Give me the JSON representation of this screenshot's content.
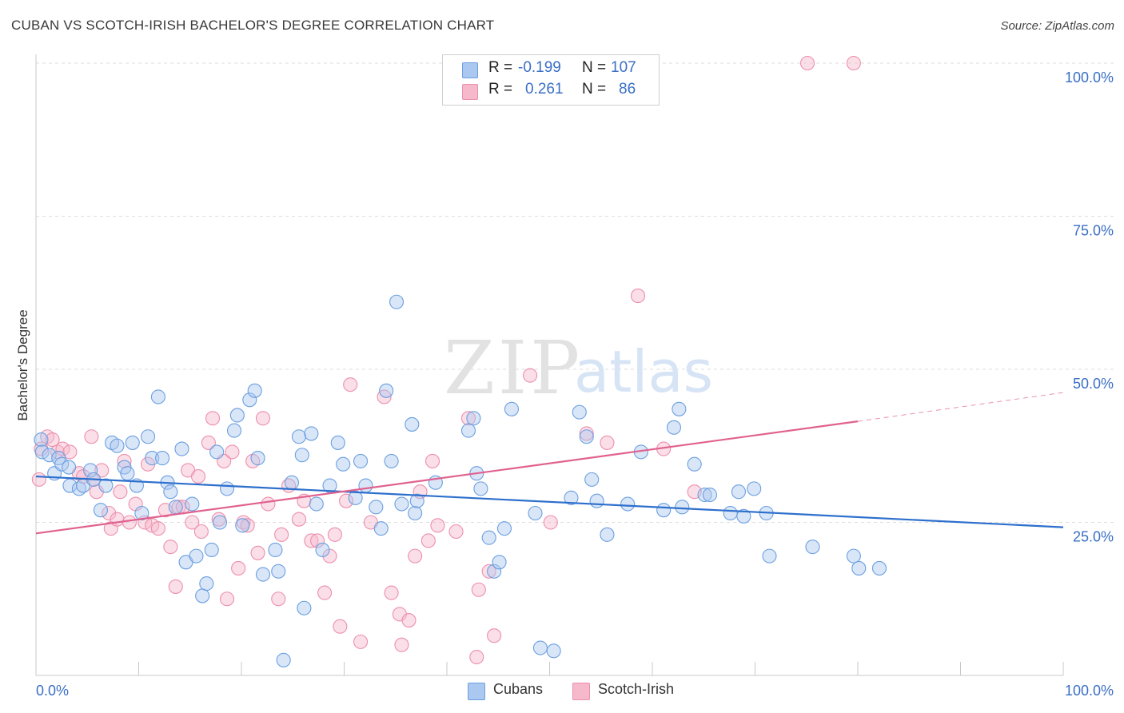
{
  "header": {
    "title": "CUBAN VS SCOTCH-IRISH BACHELOR'S DEGREE CORRELATION CHART",
    "source": "Source: ZipAtlas.com"
  },
  "watermark": {
    "zip": "ZIP",
    "atlas": "atlas"
  },
  "legend": {
    "rows": [
      {
        "r_label": "R =",
        "r_value": "-0.199",
        "n_label": "N =",
        "n_value": "107"
      },
      {
        "r_label": "R =",
        "r_value": "0.261",
        "n_label": "N =",
        "n_value": "86"
      }
    ]
  },
  "bottom_legend": {
    "cubans": "Cubans",
    "scotch_irish": "Scotch-Irish"
  },
  "colors": {
    "cubans_fill": "#aac8f0",
    "cubans_stroke": "#6b9fe0",
    "cubans_line": "#2d6fcc",
    "scotch_fill": "#f6b8cb",
    "scotch_stroke": "#ec8fac",
    "scotch_line": "#e0628f",
    "tick_label": "#3a6fc4",
    "grid": "#dddddd"
  },
  "chart_data": {
    "type": "scatter",
    "title": "CUBAN VS SCOTCH-IRISH BACHELOR'S DEGREE CORRELATION CHART",
    "xlabel": "",
    "ylabel": "Bachelor's Degree",
    "xlim": [
      0,
      100
    ],
    "ylim": [
      0,
      100
    ],
    "x_tick_labels": [
      "0.0%",
      "100.0%"
    ],
    "y_ticks": [
      25,
      50,
      75,
      100
    ],
    "y_tick_labels": [
      "25.0%",
      "50.0%",
      "75.0%",
      "100.0%"
    ],
    "grid": "horizontal dashed",
    "legend_position": "top-center",
    "series": [
      {
        "name": "Cubans",
        "r": -0.199,
        "n": 107,
        "trend": {
          "x": [
            0,
            100
          ],
          "y": [
            32.5,
            24.2
          ]
        },
        "points": [
          [
            0.5,
            38.5
          ],
          [
            0.6,
            36.5
          ],
          [
            1.3,
            36
          ],
          [
            1.8,
            33
          ],
          [
            2.2,
            35.5
          ],
          [
            2.5,
            34.5
          ],
          [
            3.2,
            34
          ],
          [
            3.3,
            31
          ],
          [
            4.2,
            30.5
          ],
          [
            4.6,
            31
          ],
          [
            5.3,
            33.5
          ],
          [
            5.6,
            32
          ],
          [
            6.3,
            27
          ],
          [
            6.8,
            31
          ],
          [
            7.4,
            38
          ],
          [
            7.9,
            37.5
          ],
          [
            8.6,
            34
          ],
          [
            8.9,
            33
          ],
          [
            9.4,
            38
          ],
          [
            9.8,
            31
          ],
          [
            10.3,
            26.5
          ],
          [
            10.9,
            39
          ],
          [
            11.3,
            35.5
          ],
          [
            11.9,
            45.5
          ],
          [
            12.3,
            35.5
          ],
          [
            12.8,
            31.5
          ],
          [
            13.1,
            30
          ],
          [
            13.6,
            27.5
          ],
          [
            14.2,
            37
          ],
          [
            14.6,
            18.5
          ],
          [
            15.2,
            28
          ],
          [
            15.6,
            19.5
          ],
          [
            16.2,
            13
          ],
          [
            16.6,
            15
          ],
          [
            17.1,
            20.5
          ],
          [
            17.6,
            36.5
          ],
          [
            17.9,
            25
          ],
          [
            18.6,
            30.5
          ],
          [
            19.3,
            40
          ],
          [
            19.6,
            42.5
          ],
          [
            20.1,
            24.5
          ],
          [
            20.8,
            45
          ],
          [
            21.3,
            46.5
          ],
          [
            21.6,
            35.5
          ],
          [
            22.1,
            16.5
          ],
          [
            23.3,
            20.5
          ],
          [
            23.6,
            17
          ],
          [
            24.1,
            2.5
          ],
          [
            24.9,
            31.5
          ],
          [
            25.6,
            39
          ],
          [
            25.9,
            36
          ],
          [
            26.1,
            11
          ],
          [
            26.8,
            39.5
          ],
          [
            27.3,
            28
          ],
          [
            27.9,
            20.5
          ],
          [
            28.6,
            31
          ],
          [
            29.4,
            38
          ],
          [
            29.9,
            34.5
          ],
          [
            31.1,
            29
          ],
          [
            31.6,
            35
          ],
          [
            32.1,
            31
          ],
          [
            33.1,
            27.5
          ],
          [
            33.6,
            24
          ],
          [
            34.1,
            46.5
          ],
          [
            34.6,
            35
          ],
          [
            35.1,
            61
          ],
          [
            35.6,
            28
          ],
          [
            36.6,
            41
          ],
          [
            36.9,
            26.5
          ],
          [
            37.1,
            28.5
          ],
          [
            38.9,
            31.5
          ],
          [
            42.1,
            40
          ],
          [
            42.6,
            42
          ],
          [
            42.9,
            33
          ],
          [
            43.3,
            30.5
          ],
          [
            44.1,
            22.5
          ],
          [
            44.6,
            17
          ],
          [
            45.1,
            18.5
          ],
          [
            45.6,
            24
          ],
          [
            46.3,
            43.5
          ],
          [
            48.6,
            26.5
          ],
          [
            49.1,
            4.5
          ],
          [
            50.4,
            4
          ],
          [
            52.1,
            29
          ],
          [
            52.9,
            43
          ],
          [
            53.6,
            39
          ],
          [
            54.1,
            32
          ],
          [
            54.6,
            28.5
          ],
          [
            55.6,
            23
          ],
          [
            57.6,
            28
          ],
          [
            58.9,
            36.5
          ],
          [
            61.1,
            27
          ],
          [
            62.1,
            40.5
          ],
          [
            62.6,
            43.5
          ],
          [
            62.9,
            27.5
          ],
          [
            64.1,
            34.5
          ],
          [
            65.1,
            29.5
          ],
          [
            65.6,
            29.5
          ],
          [
            67.6,
            26.5
          ],
          [
            68.4,
            30
          ],
          [
            68.9,
            26
          ],
          [
            69.9,
            30.5
          ],
          [
            71.1,
            26.5
          ],
          [
            71.4,
            19.5
          ],
          [
            75.6,
            21
          ],
          [
            79.6,
            19.5
          ],
          [
            80.1,
            17.5
          ],
          [
            82.1,
            17.5
          ]
        ]
      },
      {
        "name": "Scotch-Irish",
        "r": 0.261,
        "n": 86,
        "trend": {
          "x": [
            0,
            80
          ],
          "y": [
            23.2,
            41.5
          ]
        },
        "trend_dashed": {
          "x": [
            80,
            100
          ],
          "y": [
            41.5,
            46.2
          ]
        },
        "points": [
          [
            0.3,
            32
          ],
          [
            0.5,
            37
          ],
          [
            1.1,
            39
          ],
          [
            1.6,
            38.5
          ],
          [
            2.1,
            36.5
          ],
          [
            2.6,
            37
          ],
          [
            3.3,
            36.5
          ],
          [
            4.2,
            33
          ],
          [
            4.6,
            32.5
          ],
          [
            5.4,
            39
          ],
          [
            5.6,
            32
          ],
          [
            5.9,
            30
          ],
          [
            6.4,
            33.5
          ],
          [
            7.1,
            26.5
          ],
          [
            7.3,
            24
          ],
          [
            7.9,
            25.5
          ],
          [
            8.2,
            30
          ],
          [
            8.6,
            35
          ],
          [
            9.1,
            25
          ],
          [
            9.7,
            28
          ],
          [
            10.6,
            25
          ],
          [
            10.9,
            34.5
          ],
          [
            11.3,
            24.5
          ],
          [
            11.9,
            24
          ],
          [
            12.6,
            27
          ],
          [
            13.1,
            21
          ],
          [
            13.6,
            14.5
          ],
          [
            13.9,
            27.5
          ],
          [
            14.3,
            27.5
          ],
          [
            14.8,
            33.5
          ],
          [
            15.2,
            25
          ],
          [
            15.8,
            32.5
          ],
          [
            16.1,
            23.5
          ],
          [
            16.8,
            38
          ],
          [
            17.2,
            42
          ],
          [
            17.8,
            25.5
          ],
          [
            18.3,
            35
          ],
          [
            18.6,
            12.5
          ],
          [
            19.1,
            36.5
          ],
          [
            19.7,
            17.5
          ],
          [
            20.2,
            25
          ],
          [
            20.6,
            24.5
          ],
          [
            21.1,
            35
          ],
          [
            21.6,
            20
          ],
          [
            22.1,
            42
          ],
          [
            22.6,
            28
          ],
          [
            23.6,
            12.5
          ],
          [
            23.9,
            23
          ],
          [
            24.6,
            31
          ],
          [
            25.6,
            25.5
          ],
          [
            26.1,
            28.5
          ],
          [
            26.8,
            22
          ],
          [
            27.4,
            22
          ],
          [
            28.1,
            13.5
          ],
          [
            28.6,
            19.5
          ],
          [
            29.1,
            23
          ],
          [
            29.6,
            8
          ],
          [
            30.2,
            28.5
          ],
          [
            30.6,
            47.5
          ],
          [
            31.6,
            5.5
          ],
          [
            32.6,
            25
          ],
          [
            33.9,
            45.5
          ],
          [
            34.6,
            13.5
          ],
          [
            35.4,
            10
          ],
          [
            35.6,
            5
          ],
          [
            36.3,
            9
          ],
          [
            36.9,
            19.5
          ],
          [
            37.4,
            30
          ],
          [
            38.2,
            22
          ],
          [
            38.6,
            35
          ],
          [
            39.1,
            24.5
          ],
          [
            40.9,
            23.5
          ],
          [
            42.1,
            42
          ],
          [
            42.9,
            3
          ],
          [
            43.1,
            14
          ],
          [
            44.1,
            17
          ],
          [
            44.6,
            6.5
          ],
          [
            48.1,
            49
          ],
          [
            50.1,
            25
          ],
          [
            53.6,
            39.5
          ],
          [
            55.6,
            38
          ],
          [
            58.6,
            62
          ],
          [
            61.1,
            37
          ],
          [
            64.1,
            30
          ],
          [
            75.1,
            100
          ],
          [
            79.6,
            100
          ]
        ]
      }
    ]
  }
}
